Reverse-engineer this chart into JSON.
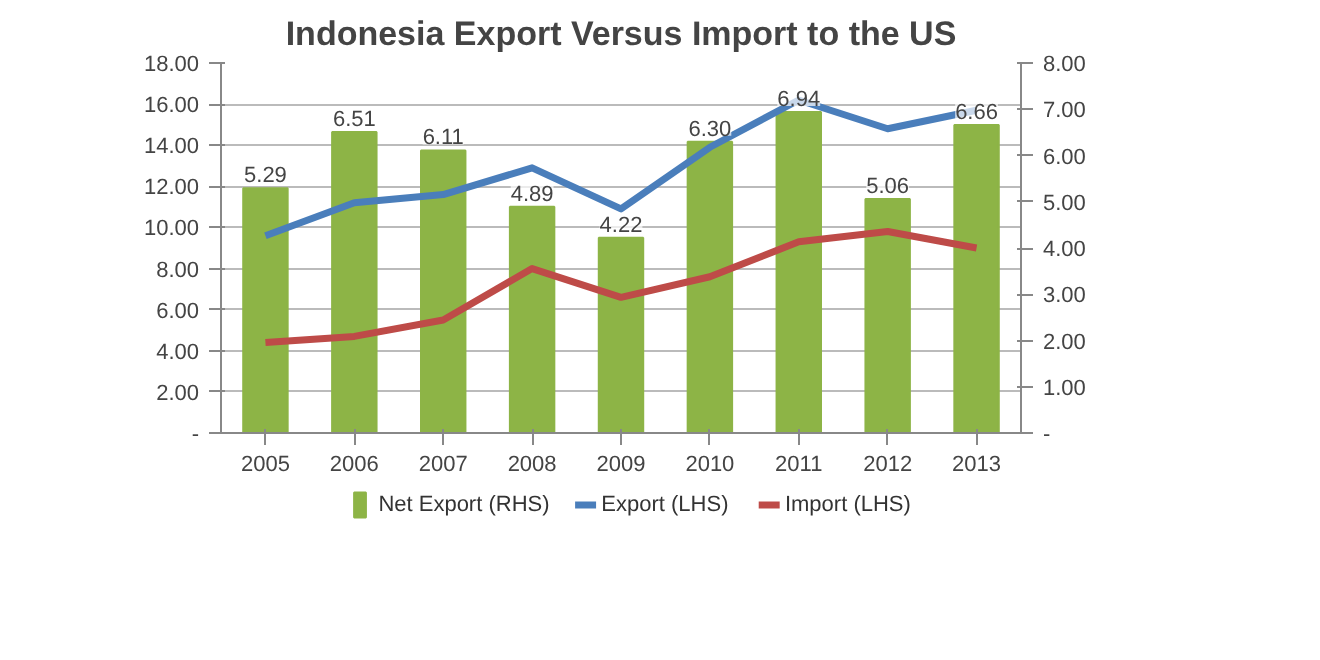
{
  "chart_data": {
    "type": "bar",
    "title": "Indonesia Export Versus Import to the US",
    "categories": [
      "2005",
      "2006",
      "2007",
      "2008",
      "2009",
      "2010",
      "2011",
      "2012",
      "2013"
    ],
    "series": [
      {
        "name": "Net Export (RHS)",
        "axis": "y2",
        "color": "#8db446",
        "values": [
          5.29,
          6.51,
          6.11,
          4.89,
          4.22,
          6.3,
          6.94,
          5.06,
          6.66
        ],
        "value_labels": [
          "5.29",
          "6.51",
          "6.11",
          "4.89",
          "4.22",
          "6.30",
          "6.94",
          "5.06",
          "6.66"
        ]
      },
      {
        "name": "Export (LHS)",
        "type": "line",
        "color": "#4a7ebb",
        "values": [
          9.6,
          11.2,
          11.6,
          12.9,
          10.9,
          13.9,
          16.2,
          14.8,
          15.7
        ]
      },
      {
        "name": "Import (LHS)",
        "type": "line",
        "color": "#be4b48",
        "values": [
          4.4,
          4.7,
          5.5,
          8.0,
          6.6,
          7.6,
          9.3,
          9.8,
          9.0
        ]
      }
    ],
    "ylim": [
      0,
      18
    ],
    "yticks": [
      {
        "value": 0,
        "label": "-"
      },
      {
        "value": 2,
        "label": "2.00"
      },
      {
        "value": 4,
        "label": "4.00"
      },
      {
        "value": 6,
        "label": "6.00"
      },
      {
        "value": 8,
        "label": "8.00"
      },
      {
        "value": 10,
        "label": "10.00"
      },
      {
        "value": 12,
        "label": "12.00"
      },
      {
        "value": 14,
        "label": "14.00"
      },
      {
        "value": 16,
        "label": "16.00"
      },
      {
        "value": 18,
        "label": "18.00"
      }
    ],
    "y2lim": [
      0,
      8
    ],
    "y2ticks": [
      {
        "value": 0,
        "label": "-"
      },
      {
        "value": 1,
        "label": "1.00"
      },
      {
        "value": 2,
        "label": "2.00"
      },
      {
        "value": 3,
        "label": "3.00"
      },
      {
        "value": 4,
        "label": "4.00"
      },
      {
        "value": 5,
        "label": "5.00"
      },
      {
        "value": 6,
        "label": "6.00"
      },
      {
        "value": 7,
        "label": "7.00"
      },
      {
        "value": 8,
        "label": "8.00"
      }
    ],
    "grid": "y",
    "legend": "bottom",
    "marker": "none",
    "line_style": "solid"
  }
}
